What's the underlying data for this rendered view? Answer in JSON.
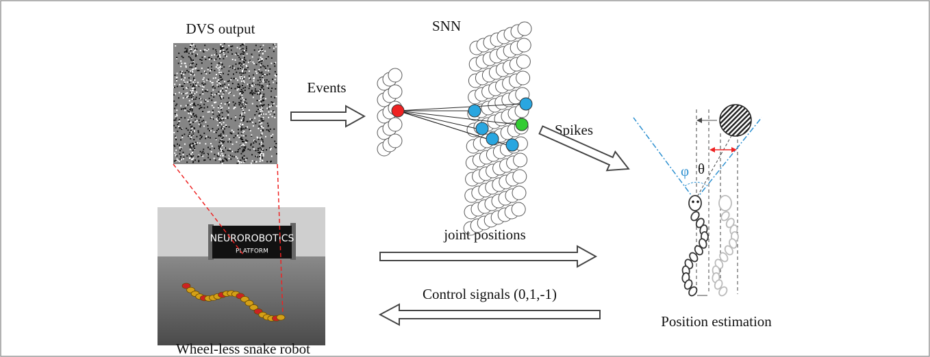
{
  "dvs_title": "DVS output",
  "snn_title": "SNN",
  "events_label": "Events",
  "spikes_label": "Spikes",
  "joint_positions_label": "joint positions",
  "control_signals_label": "Control signals (0,1,-1)",
  "position_estimation_label": "Position estimation",
  "robot_caption": "Wheel-less snake robot",
  "sign_text": [
    "NEUROROBOTICS",
    "PLATFORM"
  ],
  "angles": {
    "phi": "φ",
    "theta": "θ"
  }
}
